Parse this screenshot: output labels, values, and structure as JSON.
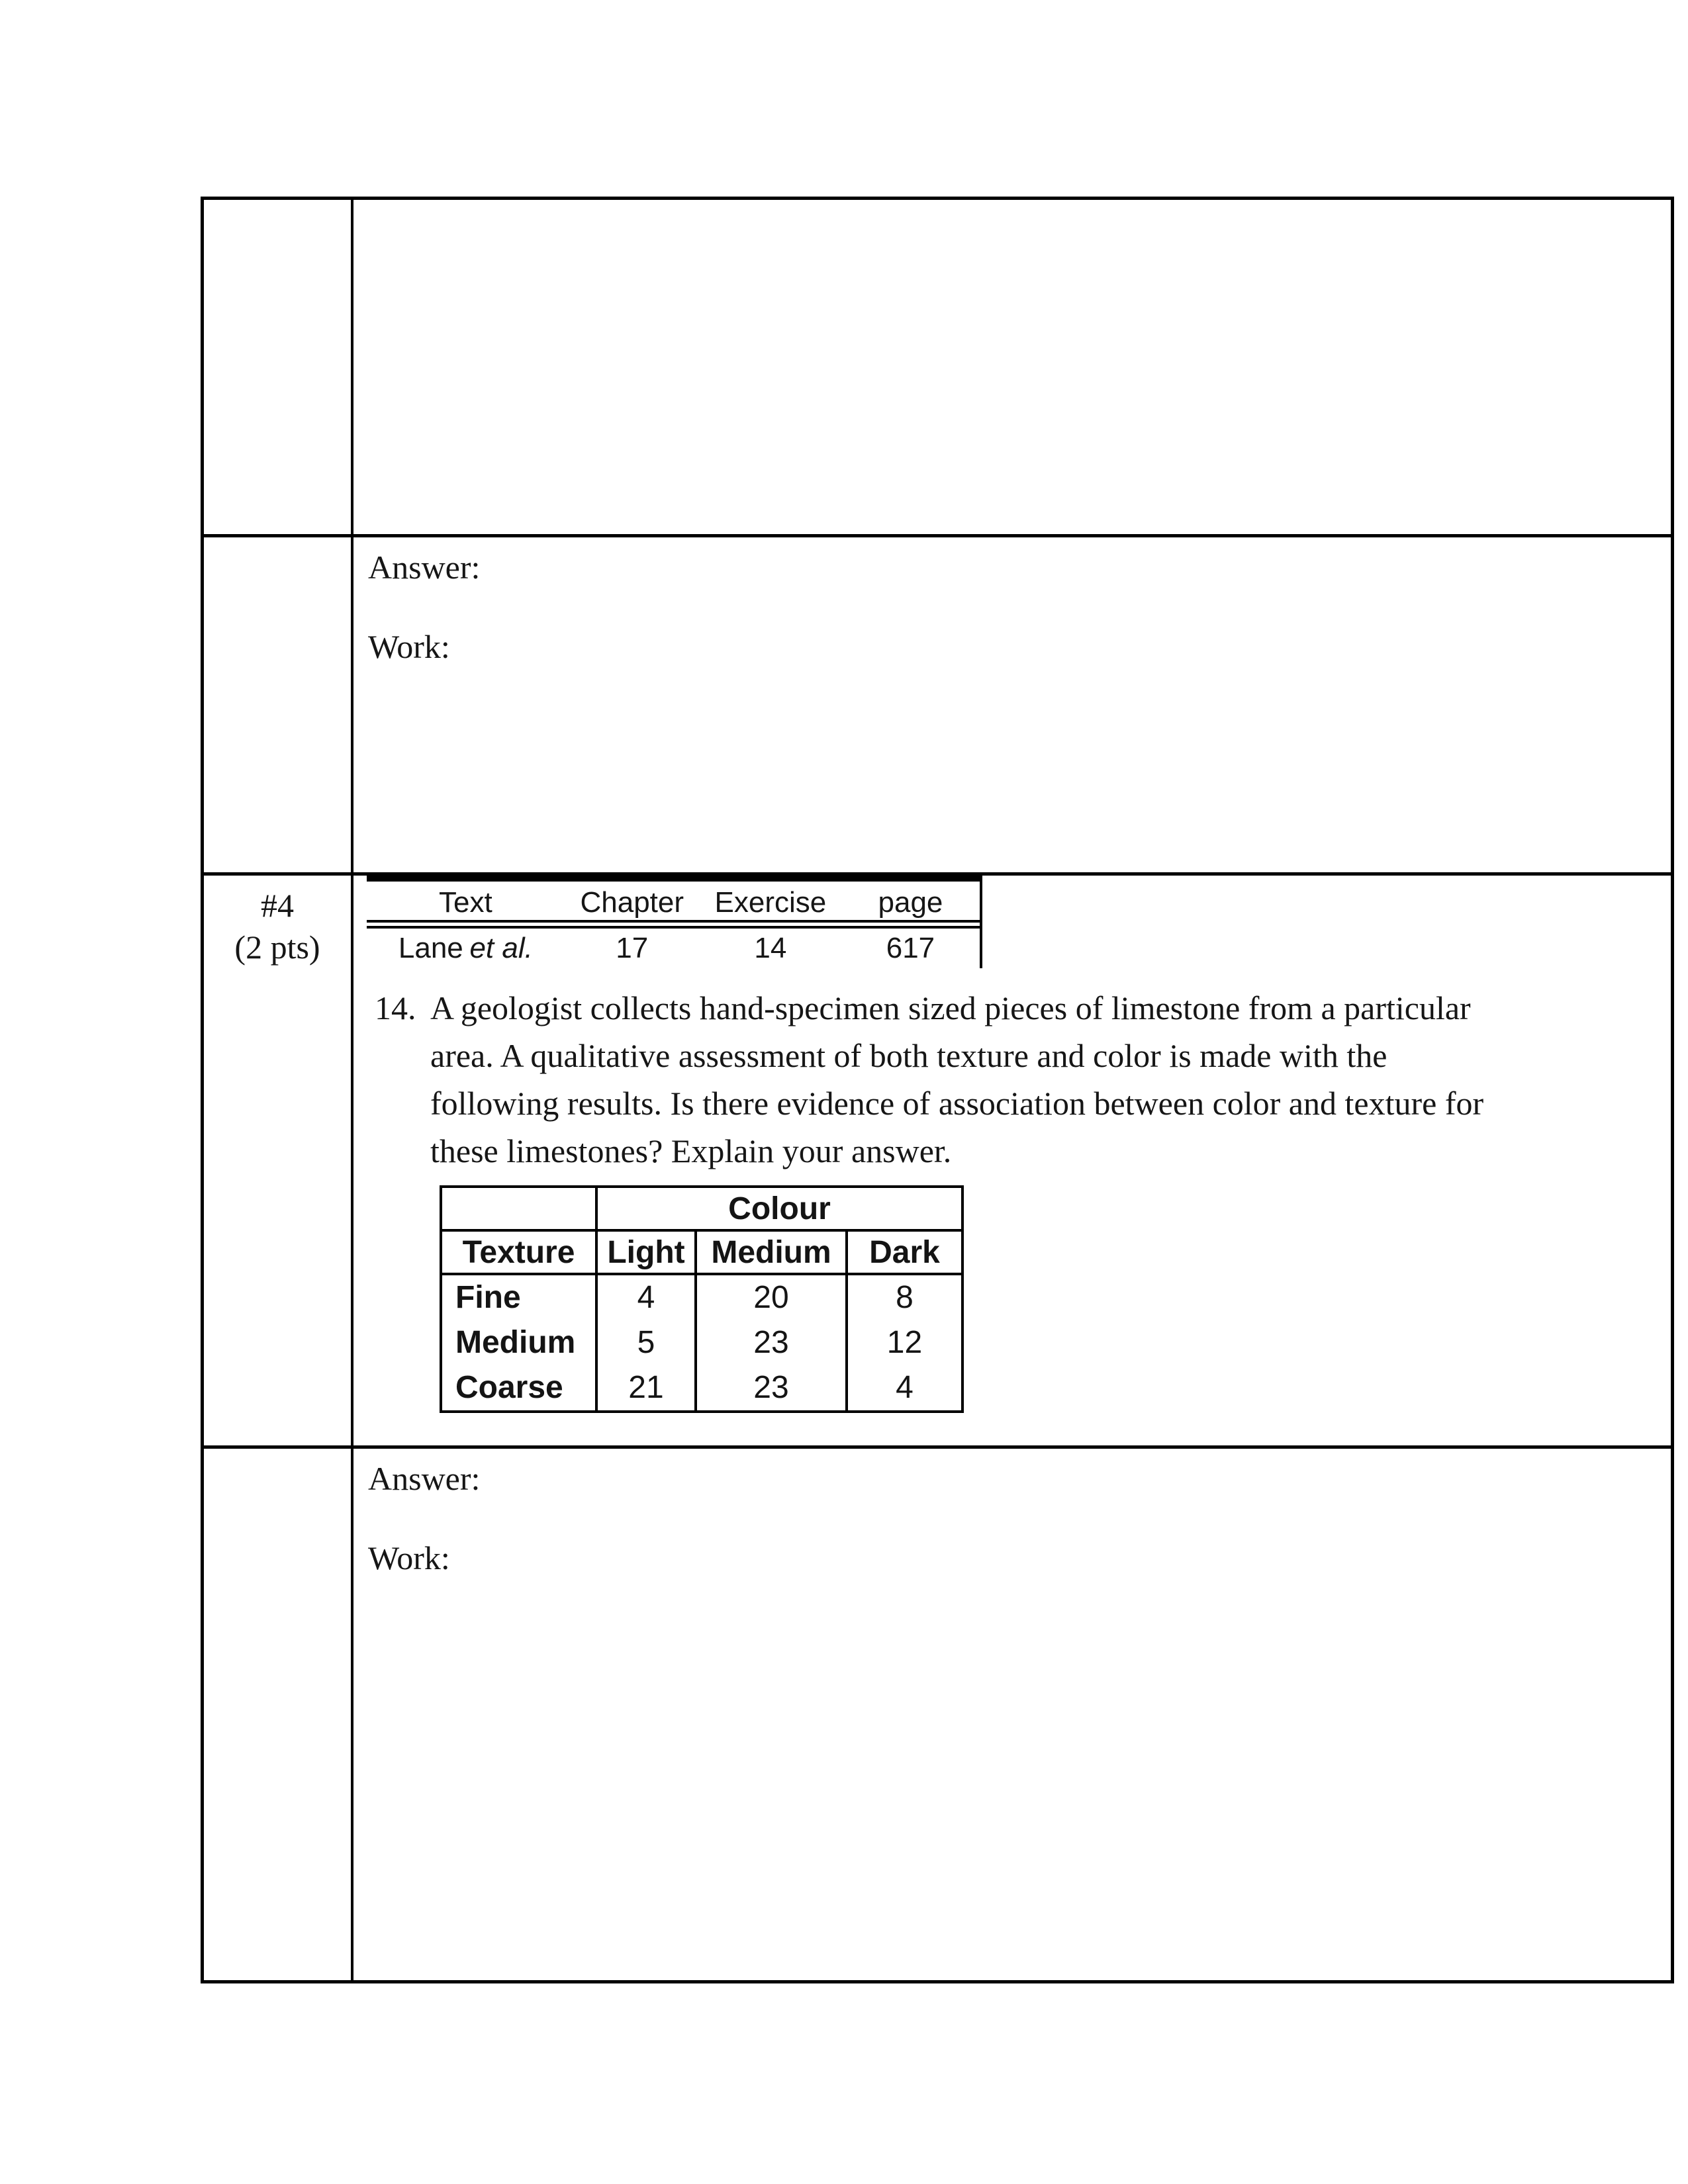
{
  "document": {
    "answer_cell_top": {
      "answer_label": "Answer:",
      "work_label": "Work:"
    },
    "question_cell": {
      "number": "#4",
      "points": "(2 pts)",
      "reference_table": {
        "headers": {
          "text": "Text",
          "chapter": "Chapter",
          "exercise": "Exercise",
          "page": "page"
        },
        "entry": {
          "text_name": "Lane",
          "text_etal": "et al.",
          "chapter": "17",
          "exercise": "14",
          "page": "617"
        }
      },
      "question": {
        "number": "14.",
        "lines": [
          "A geologist collects hand-specimen sized pieces of limestone from a particular",
          "area. A qualitative assessment of both texture and color is made with the",
          "following results. Is there evidence of association between color and texture for",
          "these limestones? Explain your answer."
        ]
      },
      "data_table": {
        "colour_header": "Colour",
        "row_dim_header": "Texture",
        "col_headers": [
          "Light",
          "Medium",
          "Dark"
        ],
        "rows": [
          {
            "label": "Fine",
            "values": [
              "4",
              "20",
              "8"
            ]
          },
          {
            "label": "Medium",
            "values": [
              "5",
              "23",
              "12"
            ]
          },
          {
            "label": "Coarse",
            "values": [
              "21",
              "23",
              "4"
            ]
          }
        ]
      }
    },
    "answer_cell_bottom": {
      "answer_label": "Answer:",
      "work_label": "Work:"
    }
  }
}
